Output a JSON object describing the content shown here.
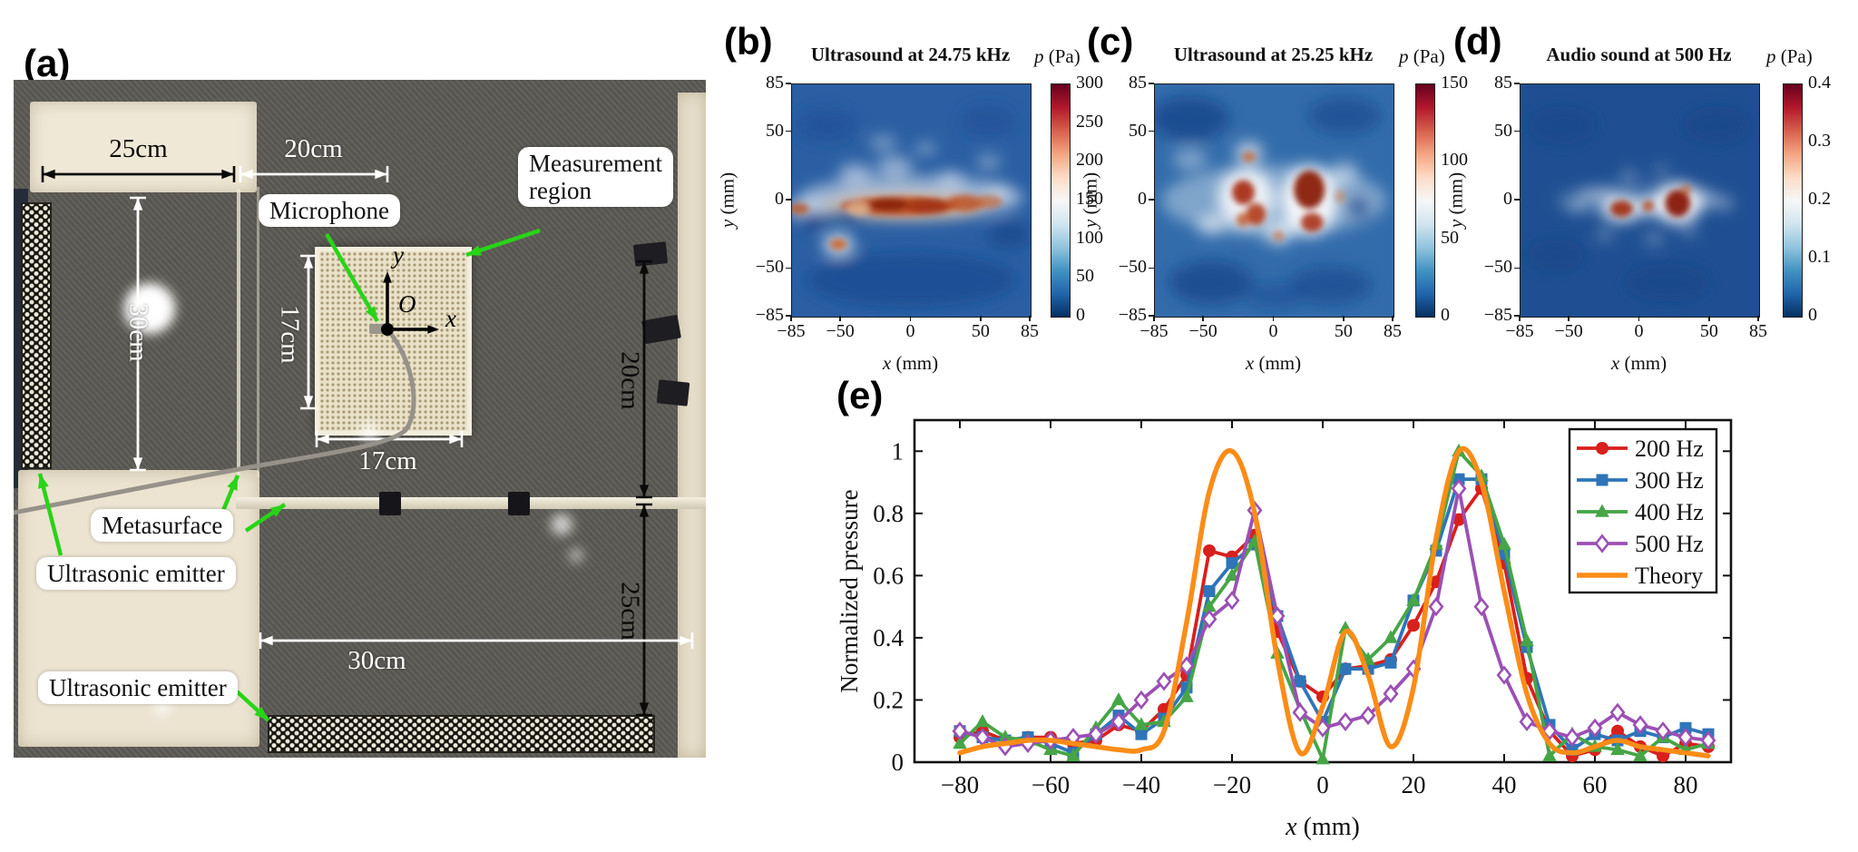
{
  "panel_a": {
    "label": "(a)",
    "photo_labels": {
      "measurement_region_line1": "Measurement",
      "measurement_region_line2": "region",
      "microphone": "Microphone",
      "metasurface": "Metasurface",
      "ultrasonic_emitter_top": "Ultrasonic emitter",
      "ultrasonic_emitter_bottom": "Ultrasonic emitter"
    },
    "dimensions": {
      "top_left": "25cm",
      "top_mid": "20cm",
      "left_vertical": "30cm",
      "grid_vertical": "17cm",
      "grid_horizontal": "17cm",
      "right_upper": "20cm",
      "right_lower": "25cm",
      "bottom_horizontal": "30cm"
    },
    "axes": {
      "origin": "O",
      "x": "x",
      "y": "y"
    }
  },
  "colormap": [
    "#053061",
    "#2166ac",
    "#4393c3",
    "#92c5de",
    "#d1e5f0",
    "#f7f7f7",
    "#fddbc7",
    "#f4a582",
    "#d6604d",
    "#b2182b",
    "#67001f"
  ],
  "chart_data": [
    {
      "id": "b",
      "type": "heatmap",
      "panel_label": "(b)",
      "title": "Ultrasound at 24.75 kHz",
      "colorbar_label": "p (Pa)",
      "x_label": "x (mm)",
      "y_label": "y (mm)",
      "x_range": [
        -85,
        85
      ],
      "y_range": [
        -85,
        85
      ],
      "x_ticks": [
        -85,
        -50,
        0,
        50,
        85
      ],
      "y_ticks": [
        85,
        50,
        0,
        -50,
        -85
      ],
      "value_range": [
        0,
        300
      ],
      "colorbar_ticks": [
        300,
        250,
        200,
        150,
        100,
        50,
        0
      ],
      "base_color": "#2a5fa3",
      "soft": [
        [
          0,
          2,
          80,
          16,
          "#ffffff",
          0.5
        ],
        [
          -5,
          -4,
          58,
          10,
          "#e8c9a8",
          0.85
        ],
        [
          -75,
          -6,
          14,
          7,
          "#ffffff",
          0.6
        ],
        [
          -52,
          -32,
          11,
          8,
          "#ffffff",
          0.75
        ],
        [
          -40,
          20,
          12,
          7,
          "#ffffff",
          0.5
        ],
        [
          -12,
          25,
          13,
          7,
          "#ffffff",
          0.5
        ],
        [
          28,
          16,
          10,
          6,
          "#ffffff",
          0.45
        ],
        [
          62,
          6,
          9,
          6,
          "#ffffff",
          0.5
        ],
        [
          55,
          28,
          9,
          5,
          "#ffffff",
          0.4
        ],
        [
          -20,
          42,
          10,
          6,
          "#ffffff",
          0.35
        ],
        [
          10,
          38,
          8,
          5,
          "#ffffff",
          0.35
        ],
        [
          -60,
          55,
          22,
          12,
          "#1c4c95",
          0.6
        ],
        [
          55,
          58,
          20,
          12,
          "#1c4c95",
          0.55
        ],
        [
          0,
          -58,
          75,
          20,
          "#17438c",
          0.6
        ],
        [
          70,
          -25,
          16,
          10,
          "#123f86",
          0.6
        ],
        [
          -70,
          -14,
          10,
          7,
          "#0e3a80",
          0.7
        ],
        [
          -45,
          -10,
          9,
          6,
          "#0e3a80",
          0.6
        ]
      ],
      "sharp": [
        [
          -8,
          -4,
          42,
          7,
          "#c05024",
          0.95
        ],
        [
          -16,
          -3,
          14,
          5,
          "#8a2410",
          0.95
        ],
        [
          12,
          -4,
          16,
          6,
          "#a33212",
          0.9
        ],
        [
          38,
          -2,
          14,
          6,
          "#bc5226",
          0.85
        ],
        [
          55,
          -1,
          10,
          5,
          "#c86a38",
          0.7
        ],
        [
          -52,
          -32,
          6,
          4,
          "#cc6a34",
          0.95
        ],
        [
          -80,
          -6,
          7,
          4,
          "#c05a2c",
          0.85
        ],
        [
          -38,
          -6,
          8,
          5,
          "#e0b894",
          0.8
        ]
      ]
    },
    {
      "id": "c",
      "type": "heatmap",
      "panel_label": "(c)",
      "title": "Ultrasound at 25.25 kHz",
      "colorbar_label": "p (Pa)",
      "x_label": "x (mm)",
      "y_label": "y (mm)",
      "x_range": [
        -85,
        85
      ],
      "y_range": [
        -85,
        85
      ],
      "x_ticks": [
        -85,
        -50,
        0,
        50,
        85
      ],
      "y_ticks": [
        85,
        50,
        0,
        -50,
        -85
      ],
      "value_range": [
        0,
        150
      ],
      "colorbar_ticks": [
        150,
        100,
        50,
        0
      ],
      "base_color": "#336cab",
      "soft": [
        [
          0,
          0,
          80,
          26,
          "#dce9f2",
          0.45
        ],
        [
          -20,
          2,
          20,
          22,
          "#ffffff",
          0.85
        ],
        [
          25,
          0,
          20,
          26,
          "#ffffff",
          0.9
        ],
        [
          3,
          -24,
          10,
          8,
          "#ffffff",
          0.7
        ],
        [
          -45,
          -18,
          10,
          7,
          "#ffffff",
          0.6
        ],
        [
          50,
          20,
          10,
          8,
          "#ffffff",
          0.5
        ],
        [
          -60,
          30,
          12,
          7,
          "#ffffff",
          0.4
        ],
        [
          -18,
          35,
          10,
          8,
          "#ffffff",
          0.65
        ],
        [
          60,
          -5,
          9,
          9,
          "#1a4a93",
          0.7
        ],
        [
          -60,
          60,
          28,
          16,
          "#123f86",
          0.7
        ],
        [
          50,
          62,
          26,
          14,
          "#16448c",
          0.6
        ],
        [
          -45,
          -60,
          30,
          16,
          "#123f86",
          0.65
        ],
        [
          40,
          -62,
          30,
          14,
          "#16448c",
          0.6
        ],
        [
          0,
          -70,
          20,
          10,
          "#1a4a93",
          0.5
        ]
      ],
      "sharp": [
        [
          -22,
          6,
          8,
          9,
          "#a93014",
          0.95
        ],
        [
          -13,
          -10,
          7,
          8,
          "#b03a16",
          0.9
        ],
        [
          -22,
          -14,
          5,
          5,
          "#c25524",
          0.8
        ],
        [
          25,
          8,
          11,
          14,
          "#8c2410",
          0.97
        ],
        [
          27,
          -16,
          8,
          7,
          "#a93014",
          0.9
        ],
        [
          -18,
          32,
          5,
          4,
          "#cb6733",
          0.75
        ],
        [
          3,
          -26,
          4,
          4,
          "#cb6733",
          0.6
        ],
        [
          47,
          3,
          4,
          5,
          "#d07a45",
          0.5
        ]
      ]
    },
    {
      "id": "d",
      "type": "heatmap",
      "panel_label": "(d)",
      "title": "Audio sound at 500 Hz",
      "colorbar_label": "p (Pa)",
      "x_label": "x (mm)",
      "y_label": "y (mm)",
      "x_range": [
        -85,
        85
      ],
      "y_range": [
        -85,
        85
      ],
      "x_ticks": [
        -85,
        -50,
        0,
        50,
        85
      ],
      "y_ticks": [
        85,
        50,
        0,
        -50,
        -85
      ],
      "value_range": [
        0,
        0.4
      ],
      "colorbar_ticks": [
        0.4,
        0.3,
        0.2,
        0.1,
        0
      ],
      "base_color": "#1f4f92",
      "soft": [
        [
          0,
          0,
          60,
          12,
          "#9fc4dd",
          0.3
        ],
        [
          27,
          -2,
          17,
          15,
          "#ffffff",
          0.9
        ],
        [
          -13,
          -6,
          14,
          10,
          "#ffffff",
          0.8
        ],
        [
          6,
          -4,
          8,
          7,
          "#ffffff",
          0.7
        ],
        [
          45,
          2,
          9,
          6,
          "#ffffff",
          0.4
        ],
        [
          -30,
          4,
          14,
          4,
          "#ffffff",
          0.5
        ],
        [
          -45,
          -4,
          7,
          4,
          "#ffffff",
          0.4
        ],
        [
          -25,
          -25,
          6,
          4,
          "#ffffff",
          0.35
        ],
        [
          10,
          -28,
          7,
          4,
          "#ffffff",
          0.35
        ],
        [
          35,
          -22,
          6,
          4,
          "#ffffff",
          0.3
        ],
        [
          -8,
          18,
          6,
          4,
          "#ffffff",
          0.35
        ],
        [
          15,
          22,
          5,
          4,
          "#ffffff",
          0.3
        ],
        [
          60,
          -2,
          7,
          5,
          "#ffffff",
          0.35
        ],
        [
          -60,
          -40,
          20,
          12,
          "#143f82",
          0.5
        ],
        [
          55,
          55,
          24,
          14,
          "#143f82",
          0.5
        ],
        [
          -55,
          55,
          24,
          14,
          "#164489",
          0.5
        ],
        [
          20,
          -60,
          30,
          14,
          "#143f82",
          0.5
        ]
      ],
      "sharp": [
        [
          27,
          -2,
          9,
          10,
          "#8a1f0c",
          0.97
        ],
        [
          -13,
          -6,
          8,
          6,
          "#a12c10",
          0.92
        ],
        [
          6,
          -4,
          4,
          4,
          "#b84a20",
          0.85
        ],
        [
          33,
          8,
          4,
          4,
          "#c25524",
          0.6
        ]
      ]
    },
    {
      "id": "e",
      "type": "line",
      "panel_label": "(e)",
      "x_label": "x (mm)",
      "y_label": "Normalized pressure",
      "xlim": [
        -90,
        90
      ],
      "ylim": [
        0,
        1.1
      ],
      "x_ticks": [
        -80,
        -60,
        -40,
        -20,
        0,
        20,
        40,
        60,
        80
      ],
      "y_ticks": [
        0,
        0.2,
        0.4,
        0.6,
        0.8,
        1
      ],
      "legend_position": "upper right",
      "x": [
        -80,
        -75,
        -70,
        -65,
        -60,
        -55,
        -50,
        -45,
        -40,
        -35,
        -30,
        -25,
        -20,
        -15,
        -10,
        -5,
        0,
        5,
        10,
        15,
        20,
        25,
        30,
        35,
        40,
        45,
        50,
        55,
        60,
        65,
        70,
        75,
        80,
        85
      ],
      "series": [
        {
          "name": "200 Hz",
          "color": "#d8201c",
          "marker": "circle",
          "values": [
            0.08,
            0.1,
            0.07,
            0.08,
            0.08,
            0.06,
            0.07,
            0.12,
            0.1,
            0.17,
            0.28,
            0.68,
            0.66,
            0.73,
            0.42,
            0.26,
            0.21,
            0.3,
            0.31,
            0.33,
            0.44,
            0.58,
            0.78,
            0.88,
            0.64,
            0.27,
            0.1,
            0.02,
            0.04,
            0.1,
            0.05,
            0.02,
            0.06,
            0.05
          ]
        },
        {
          "name": "300 Hz",
          "color": "#2f74b9",
          "marker": "square",
          "values": [
            0.1,
            0.08,
            0.07,
            0.08,
            0.06,
            0.03,
            0.09,
            0.15,
            0.09,
            0.14,
            0.24,
            0.55,
            0.64,
            0.7,
            0.47,
            0.26,
            0.13,
            0.3,
            0.3,
            0.32,
            0.52,
            0.68,
            0.91,
            0.91,
            0.67,
            0.37,
            0.12,
            0.04,
            0.09,
            0.07,
            0.1,
            0.08,
            0.11,
            0.09
          ]
        },
        {
          "name": "400 Hz",
          "color": "#46a546",
          "marker": "triangle",
          "values": [
            0.06,
            0.13,
            0.08,
            0.07,
            0.04,
            0.02,
            0.11,
            0.2,
            0.12,
            0.13,
            0.21,
            0.5,
            0.6,
            0.71,
            0.35,
            0.17,
            0.01,
            0.43,
            0.33,
            0.4,
            0.52,
            0.7,
            1.0,
            0.92,
            0.7,
            0.39,
            0.02,
            0.09,
            0.05,
            0.04,
            0.02,
            0.08,
            0.04,
            0.06
          ]
        },
        {
          "name": "500 Hz",
          "color": "#9b50b4",
          "marker": "diamond-open",
          "values": [
            0.1,
            0.08,
            0.05,
            0.06,
            0.07,
            0.08,
            0.09,
            0.13,
            0.2,
            0.26,
            0.31,
            0.46,
            0.52,
            0.81,
            0.47,
            0.16,
            0.11,
            0.13,
            0.15,
            0.22,
            0.3,
            0.5,
            0.88,
            0.5,
            0.28,
            0.13,
            0.1,
            0.08,
            0.11,
            0.16,
            0.12,
            0.1,
            0.08,
            0.07
          ]
        },
        {
          "name": "Theory",
          "color": "#fb8c17",
          "marker": "none",
          "smooth": true,
          "values": [
            0.03,
            0.05,
            0.06,
            0.07,
            0.07,
            0.06,
            0.05,
            0.04,
            0.04,
            0.1,
            0.45,
            0.87,
            1.0,
            0.8,
            0.33,
            0.03,
            0.18,
            0.42,
            0.28,
            0.05,
            0.24,
            0.72,
            1.0,
            0.9,
            0.55,
            0.22,
            0.06,
            0.03,
            0.05,
            0.07,
            0.05,
            0.04,
            0.03,
            0.02
          ]
        }
      ]
    }
  ]
}
